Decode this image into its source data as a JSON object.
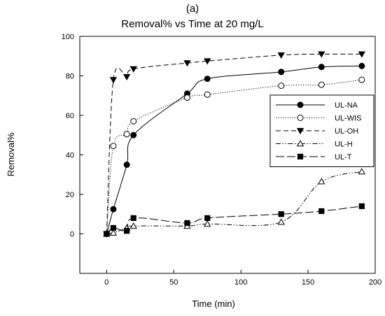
{
  "chart_data": {
    "type": "line",
    "title": "Removal% vs Time at 20 mg/L",
    "subtitle": "(a)",
    "xlabel": "Time (min)",
    "ylabel": "Removal%",
    "xlim": [
      -20,
      200
    ],
    "ylim": [
      -20,
      100
    ],
    "xticks": [
      0,
      50,
      100,
      150,
      200
    ],
    "yticks": [
      0,
      20,
      40,
      60,
      80,
      100
    ],
    "grid": false,
    "legend_position": "right",
    "series": [
      {
        "name": "UL-NA",
        "marker": "circle-filled",
        "dash": "solid",
        "x": [
          0,
          5,
          15,
          20,
          60,
          75,
          130,
          160,
          190
        ],
        "y": [
          0,
          12.5,
          35,
          50,
          71,
          78.5,
          82,
          84.5,
          85
        ]
      },
      {
        "name": "UL-WIS",
        "marker": "circle-open",
        "dash": "dotted",
        "x": [
          0,
          5,
          15,
          20,
          60,
          75,
          130,
          160,
          190
        ],
        "y": [
          0,
          44.5,
          50.5,
          57,
          69,
          70.5,
          75,
          75.5,
          78
        ]
      },
      {
        "name": "UL-OH",
        "marker": "triangle-down-filled",
        "dash": "dashed",
        "x": [
          0,
          5,
          15,
          20,
          60,
          75,
          130,
          160,
          190
        ],
        "y": [
          0,
          78,
          79.5,
          83.5,
          86.5,
          87.5,
          90.5,
          91,
          91
        ]
      },
      {
        "name": "UL-H",
        "marker": "triangle-up-open",
        "dash": "dash-dot-dot",
        "x": [
          0,
          5,
          15,
          20,
          60,
          75,
          130,
          160,
          190
        ],
        "y": [
          0,
          0.5,
          3,
          4,
          4,
          5,
          6,
          26.5,
          31.5
        ]
      },
      {
        "name": "UL-T",
        "marker": "square-filled",
        "dash": "long-dash",
        "x": [
          0,
          5,
          15,
          20,
          60,
          75,
          130,
          160,
          190
        ],
        "y": [
          0,
          3,
          1.5,
          8,
          5.5,
          8,
          10,
          11.5,
          14
        ]
      }
    ]
  }
}
